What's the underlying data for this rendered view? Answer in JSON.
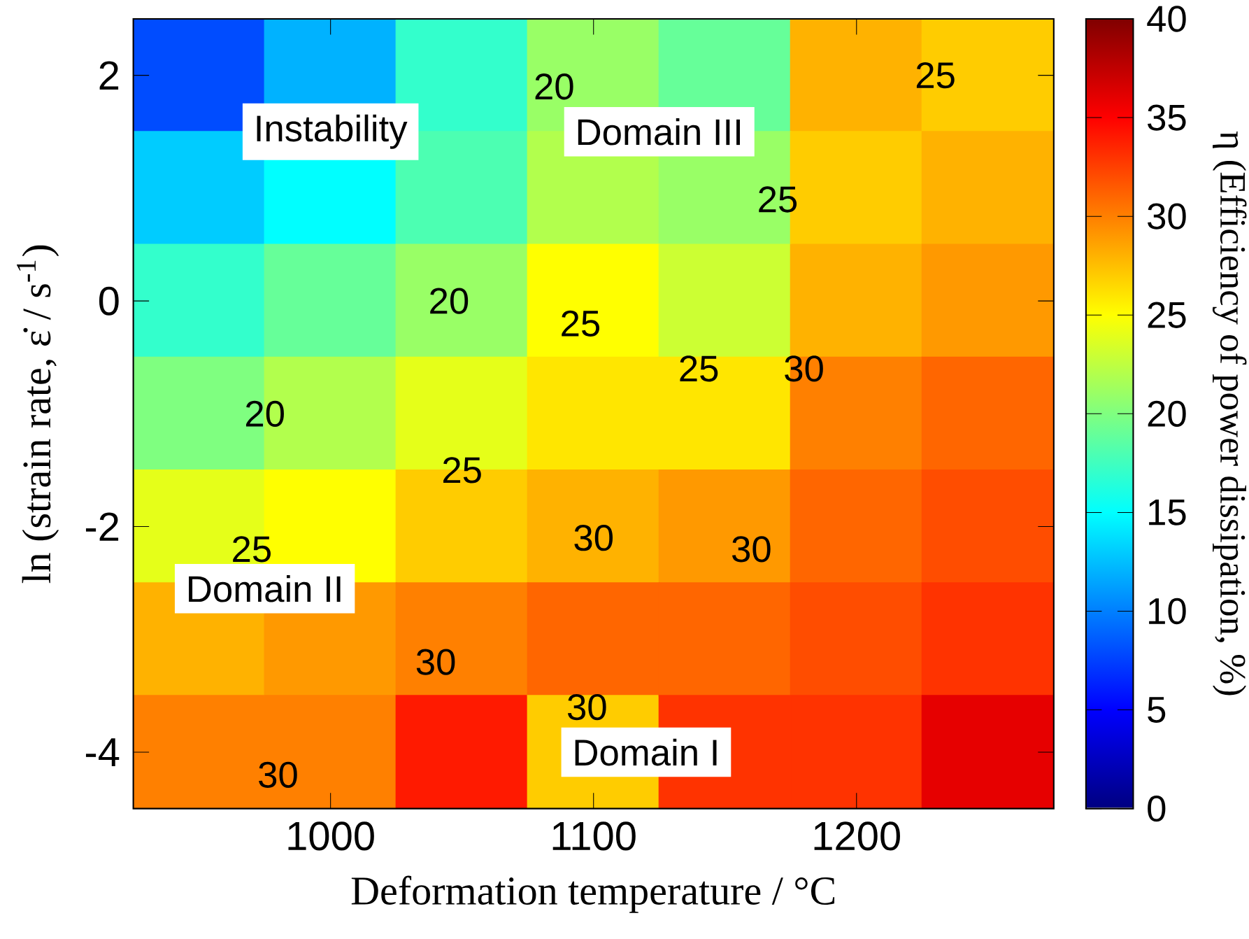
{
  "chart_data": {
    "type": "heatmap",
    "xlabel": "Deformation temperature / °C",
    "ylabel": "ln (strain rate, ε̇ / s$^{-1}$)",
    "clabel": "η (Efficiency of power dissipation, %)",
    "categories": [
      null,
      "1000",
      null,
      "1100",
      null,
      "1200",
      null
    ],
    "y_categories": [
      "2",
      null,
      "0",
      null,
      "-2",
      null,
      "-4"
    ],
    "cells": [
      [
        8,
        12,
        17,
        21,
        19,
        28,
        27
      ],
      [
        13,
        15,
        18,
        22,
        21,
        27,
        28
      ],
      [
        17,
        19,
        21,
        25,
        23,
        28,
        29
      ],
      [
        20,
        22,
        24,
        26,
        26,
        30,
        31
      ],
      [
        24,
        25,
        27,
        28,
        29,
        31,
        32
      ],
      [
        28,
        29,
        30,
        31,
        31,
        32,
        33
      ],
      [
        30,
        30,
        34,
        27,
        33,
        33,
        36
      ]
    ],
    "clim": [
      0,
      40
    ],
    "cticks": [
      0,
      5,
      10,
      15,
      20,
      25,
      30,
      35,
      40
    ],
    "annotations": [
      "Instability",
      "Domain III",
      "Domain II",
      "Domain I",
      "20",
      "20",
      "20",
      "25",
      "25",
      "25",
      "25",
      "25",
      "25",
      "30",
      "30",
      "30",
      "30",
      "30",
      "30"
    ]
  }
}
